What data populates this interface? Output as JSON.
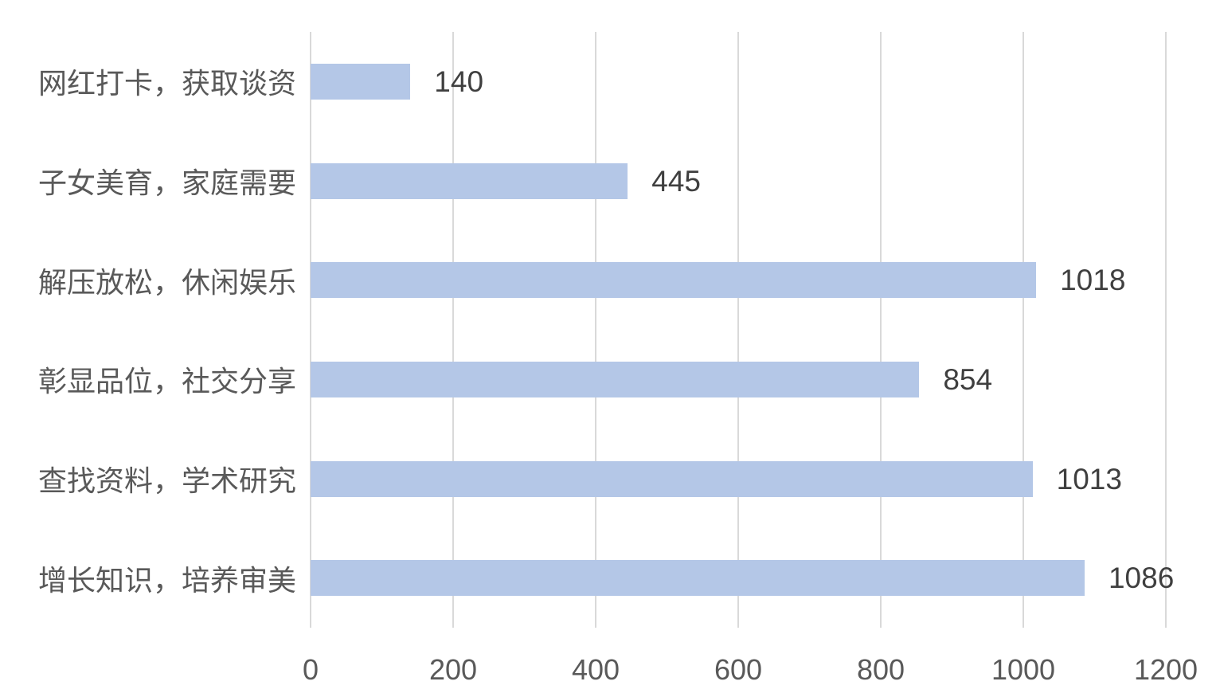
{
  "chart_data": {
    "type": "bar",
    "orientation": "horizontal",
    "title": "",
    "xlabel": "",
    "ylabel": "",
    "categories": [
      "网红打卡，获取谈资",
      "子女美育，家庭需要",
      "解压放松，休闲娱乐",
      "彰显品位，社交分享",
      "查找资料，学术研究",
      "增长知识，培养审美"
    ],
    "values": [
      140,
      445,
      1018,
      854,
      1013,
      1086
    ],
    "value_labels": [
      "140",
      "445",
      "1018",
      "854",
      "1013",
      "1086"
    ],
    "x_ticks": [
      "0",
      "200",
      "400",
      "600",
      "800",
      "1000",
      "1200"
    ],
    "x_tick_values": [
      0,
      200,
      400,
      600,
      800,
      1000,
      1200
    ],
    "xlim": [
      0,
      1200
    ],
    "grid": "vertical-only",
    "legend": "none",
    "data_label_position": "outside-end",
    "colors": {
      "bar": "#b4c7e7",
      "gridline": "#d9d9d9",
      "category_label": "#595959",
      "tick_label": "#595959",
      "value_label": "#3f3f3f",
      "background": "#ffffff"
    }
  }
}
